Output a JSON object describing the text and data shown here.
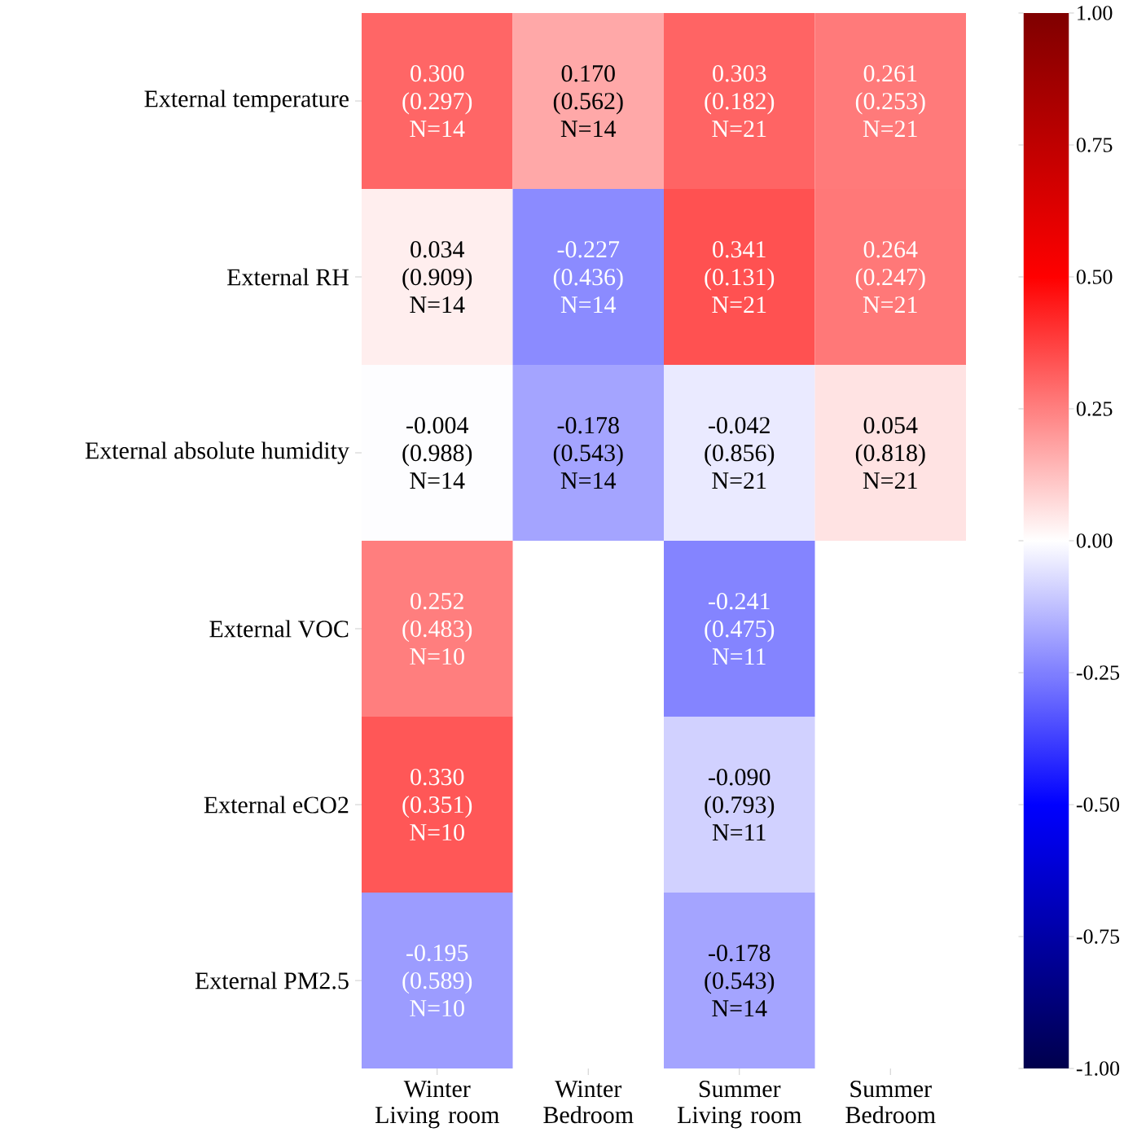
{
  "chart_data": {
    "type": "heatmap",
    "categories": [
      "Winter Living room",
      "Winter Bedroom",
      "Summer Living room",
      "Summer Bedroom"
    ],
    "y_categories": [
      "External temperature",
      "External RH",
      "External absolute humidity",
      "External VOC",
      "External eCO2",
      "External PM2.5"
    ],
    "cells": [
      [
        0.3,
        0.17,
        0.303,
        0.261
      ],
      [
        0.034,
        -0.227,
        0.341,
        0.264
      ],
      [
        -0.004,
        -0.178,
        -0.042,
        0.054
      ],
      [
        0.252,
        null,
        -0.241,
        null
      ],
      [
        0.33,
        null,
        -0.09,
        null
      ],
      [
        -0.195,
        null,
        -0.178,
        null
      ]
    ],
    "cell_labels": [
      [
        "0.300 (0.297) N=14",
        "0.170 (0.562) N=14",
        "0.303 (0.182) N=21",
        "0.261 (0.253) N=21"
      ],
      [
        "0.034 (0.909) N=14",
        "-0.227 (0.436) N=14",
        "0.341 (0.131) N=21",
        "0.264 (0.247) N=21"
      ],
      [
        "-0.004 (0.988) N=14",
        "-0.178 (0.543) N=14",
        "-0.042 (0.856) N=21",
        "0.054 (0.818) N=21"
      ],
      [
        "0.252 (0.483) N=10",
        null,
        "-0.241 (0.475) N=11",
        null
      ],
      [
        "0.330 (0.351) N=10",
        null,
        "-0.090 (0.793) N=11",
        null
      ],
      [
        "-0.195 (0.589) N=10",
        null,
        "-0.178 (0.543) N=14",
        null
      ]
    ],
    "clim": [
      -1,
      1
    ],
    "cticks": [
      {
        "value": -1,
        "label": "-1.00"
      },
      {
        "value": -0.75,
        "label": "-0.75"
      },
      {
        "value": -0.5,
        "label": "-0.50"
      },
      {
        "value": -0.25,
        "label": "-0.25"
      },
      {
        "value": 0,
        "label": "0.00"
      },
      {
        "value": 0.25,
        "label": "0.25"
      },
      {
        "value": 0.5,
        "label": "0.50"
      },
      {
        "value": 0.75,
        "label": "0.75"
      },
      {
        "value": 1,
        "label": "1.00"
      }
    ]
  }
}
